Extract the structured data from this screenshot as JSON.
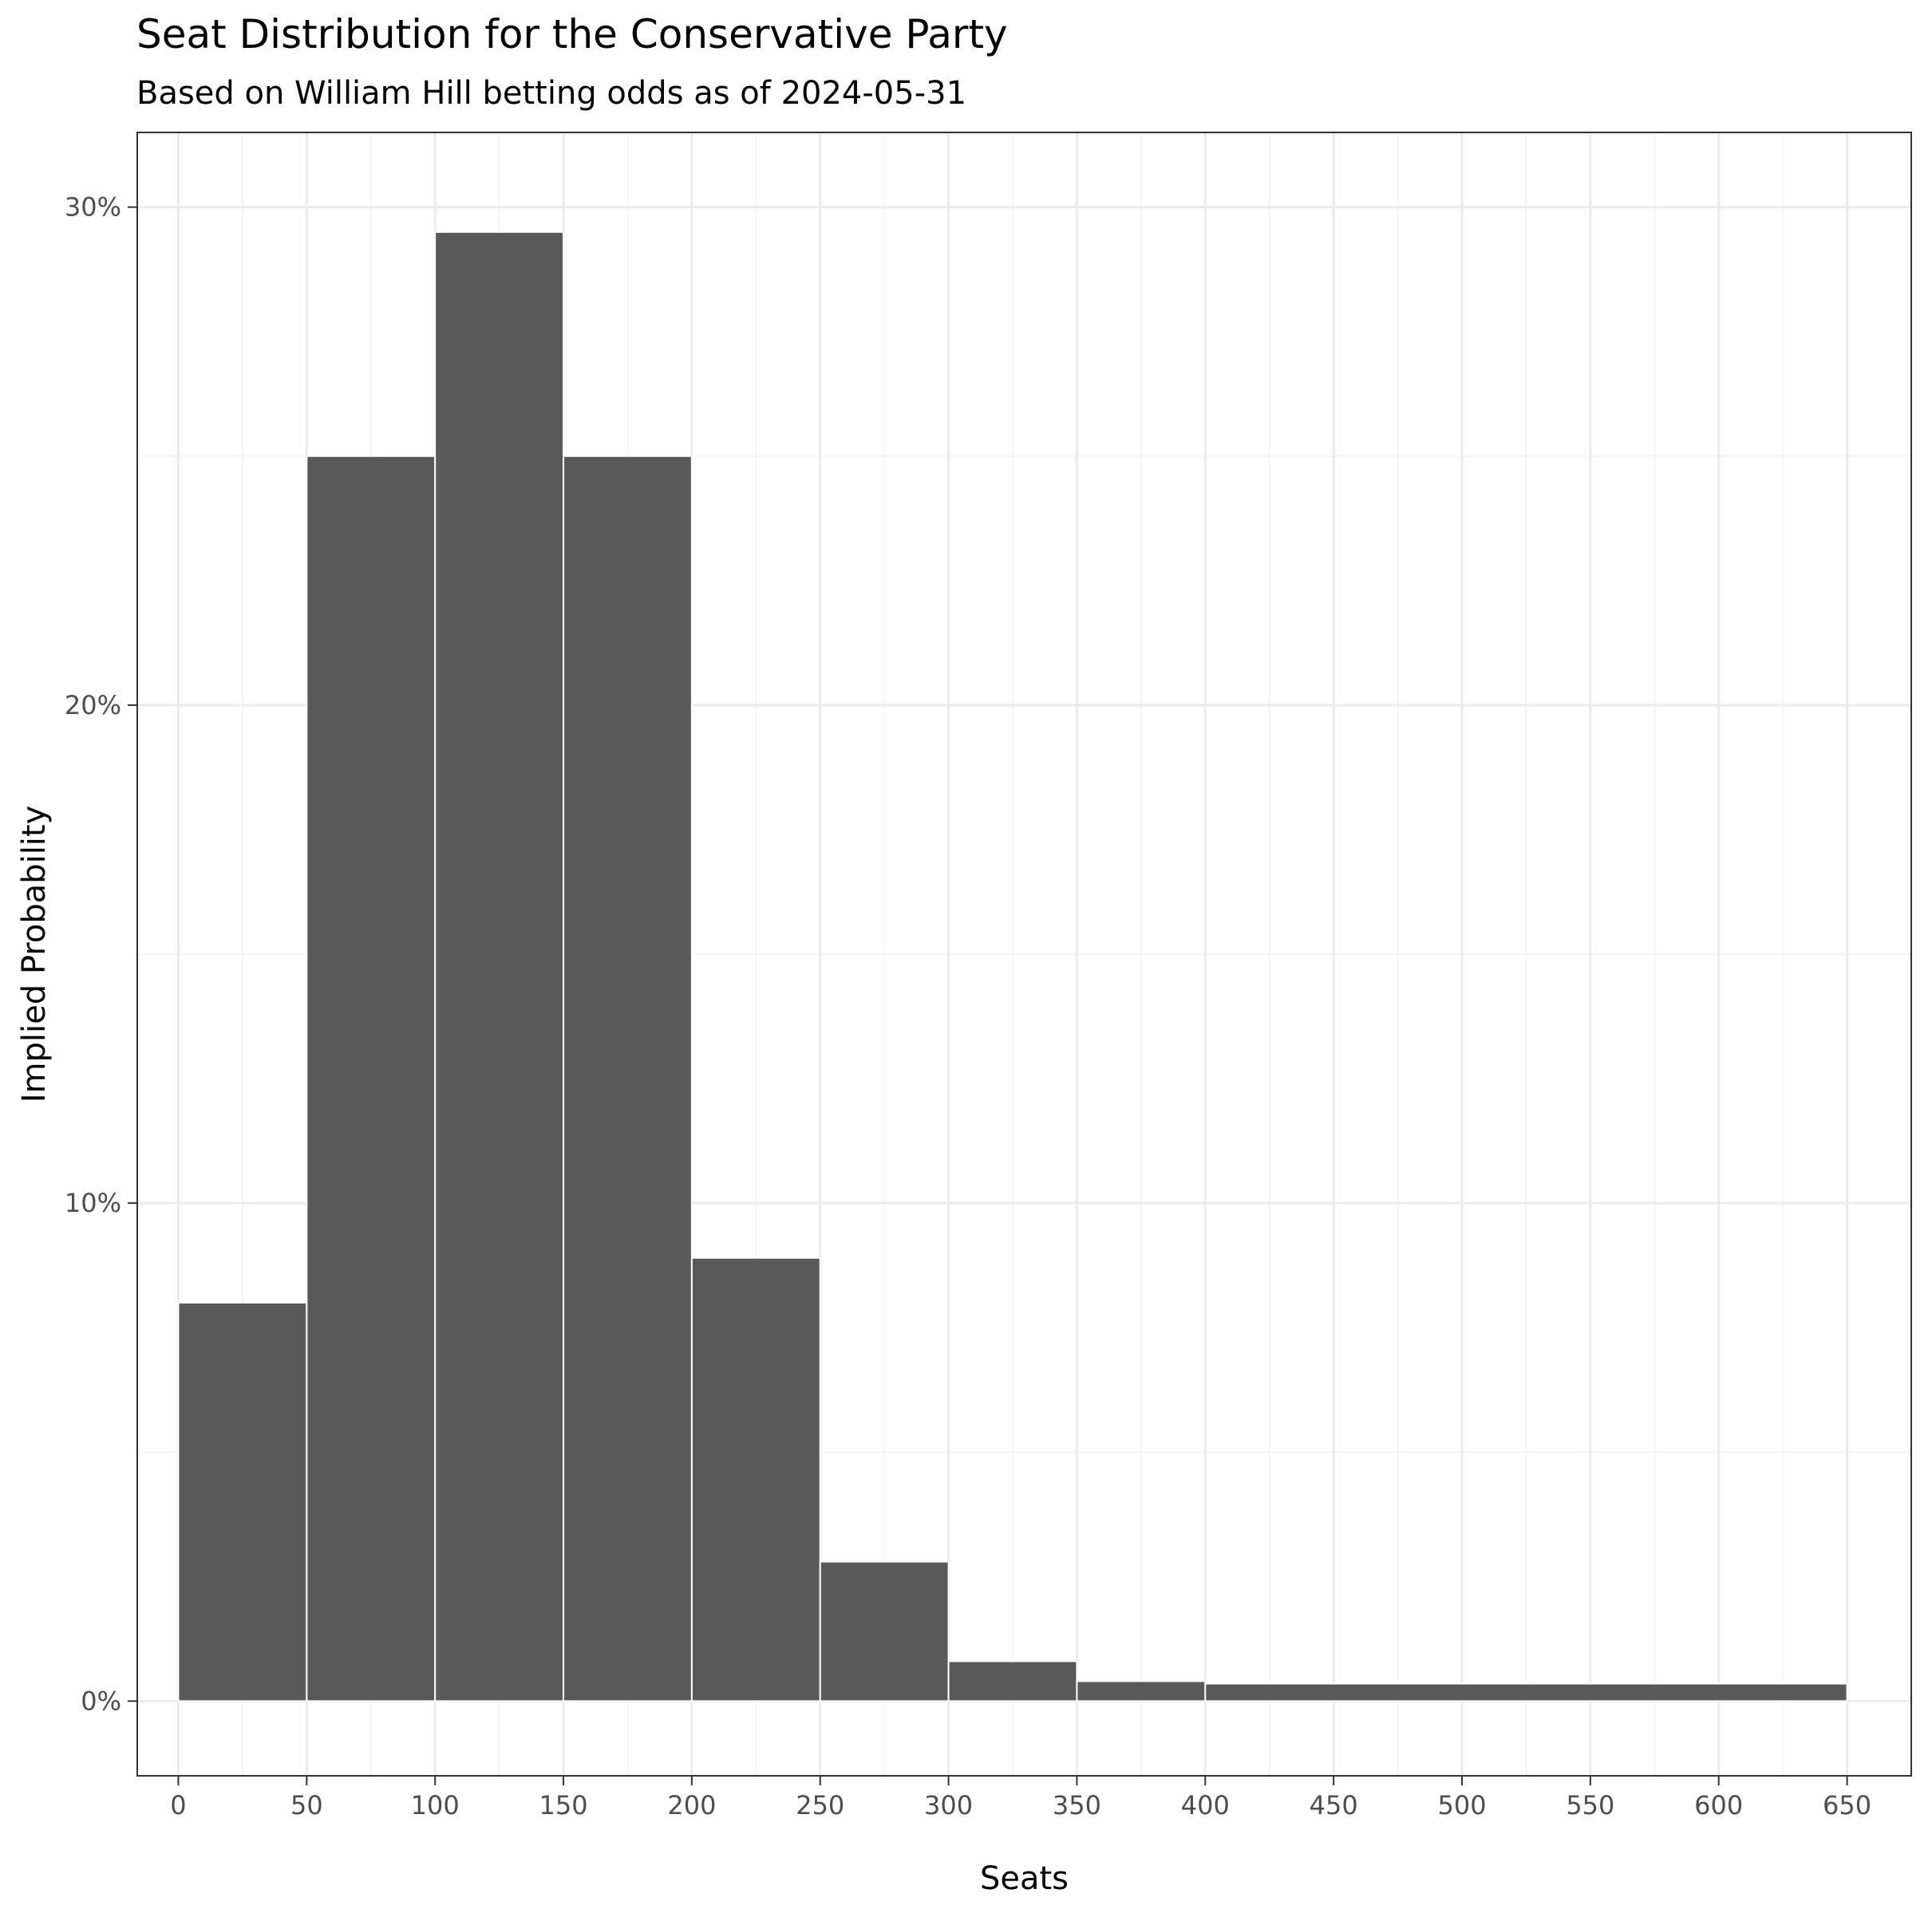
{
  "chart_data": {
    "type": "bar",
    "title": "Seat Distribution for the Conservative Party",
    "subtitle": "Based on William Hill betting odds as of 2024-05-31",
    "xlabel": "Seats",
    "ylabel": "Implied Probability",
    "bins": [
      {
        "x0": 0,
        "x1": 50,
        "value": 8.0
      },
      {
        "x0": 50,
        "x1": 100,
        "value": 25.0
      },
      {
        "x0": 100,
        "x1": 150,
        "value": 29.5
      },
      {
        "x0": 150,
        "x1": 200,
        "value": 25.0
      },
      {
        "x0": 200,
        "x1": 250,
        "value": 8.9
      },
      {
        "x0": 250,
        "x1": 300,
        "value": 2.8
      },
      {
        "x0": 300,
        "x1": 350,
        "value": 0.8
      },
      {
        "x0": 350,
        "x1": 400,
        "value": 0.4
      },
      {
        "x0": 400,
        "x1": 650,
        "value": 0.35
      }
    ],
    "xlim": [
      -16,
      675
    ],
    "ylim": [
      -1.5,
      31.5
    ],
    "x_ticks": [
      0,
      50,
      100,
      150,
      200,
      250,
      300,
      350,
      400,
      450,
      500,
      550,
      600,
      650
    ],
    "x_tick_labels": [
      "0",
      "50",
      "100",
      "150",
      "200",
      "250",
      "300",
      "350",
      "400",
      "450",
      "500",
      "550",
      "600",
      "650"
    ],
    "y_ticks": [
      0,
      10,
      20,
      30
    ],
    "y_tick_labels": [
      "0%",
      "10%",
      "20%",
      "30%"
    ],
    "grid": true,
    "legend": "none",
    "bar_color": "#595959",
    "bar_outline": "#ffffff"
  }
}
